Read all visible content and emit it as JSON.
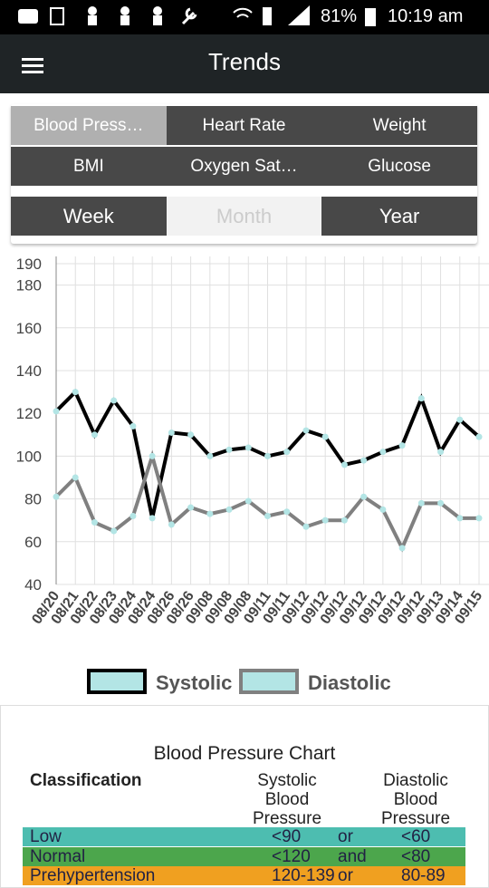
{
  "status_bar": {
    "battery": "81%",
    "time": "10:19 am"
  },
  "header": {
    "title": "Trends"
  },
  "tabs": [
    "Blood Press…",
    "Heart Rate",
    "Weight",
    "BMI",
    "Oxygen Sat…",
    "Glucose"
  ],
  "periods": [
    "Week",
    "Month",
    "Year"
  ],
  "chart_data": {
    "type": "line",
    "categories": [
      "08/20",
      "08/21",
      "08/22",
      "08/23",
      "08/24",
      "08/24",
      "08/26",
      "08/26",
      "09/08",
      "09/08",
      "09/08",
      "09/11",
      "09/11",
      "09/12",
      "09/12",
      "09/12",
      "09/12",
      "09/12",
      "09/12",
      "09/12",
      "09/13",
      "09/14",
      "09/15"
    ],
    "series": [
      {
        "name": "Systolic",
        "color": "#000000",
        "marker_color": "#b3e5e5",
        "values": [
          121,
          130,
          110,
          126,
          114,
          71,
          111,
          110,
          100,
          103,
          104,
          100,
          102,
          112,
          109,
          96,
          98,
          102,
          105,
          127,
          102,
          117,
          109
        ]
      },
      {
        "name": "Diastolic",
        "color": "#808080",
        "marker_color": "#b3e5e5",
        "values": [
          81,
          90,
          69,
          65,
          72,
          100,
          68,
          76,
          73,
          75,
          79,
          72,
          74,
          67,
          70,
          70,
          81,
          75,
          57,
          78,
          78,
          71,
          71
        ]
      }
    ],
    "ylim": [
      40,
      190
    ],
    "yticks": [
      40,
      60,
      80,
      100,
      120,
      140,
      160,
      180,
      190
    ],
    "grid": true
  },
  "bp_chart": {
    "title": "Blood Pressure Chart",
    "headers": [
      "Classification",
      "Systolic Blood Pressure",
      "Diastolic Blood Pressure"
    ],
    "rows": [
      {
        "cells": [
          "Low",
          "<90",
          "or",
          "<60"
        ],
        "color": "#4dbdb0"
      },
      {
        "cells": [
          "Normal",
          "<120",
          "and",
          "<80"
        ],
        "color": "#4ca64c"
      },
      {
        "cells": [
          "Prehypertension",
          "120-139",
          "or",
          "80-89"
        ],
        "color": "#f0a020"
      }
    ]
  }
}
